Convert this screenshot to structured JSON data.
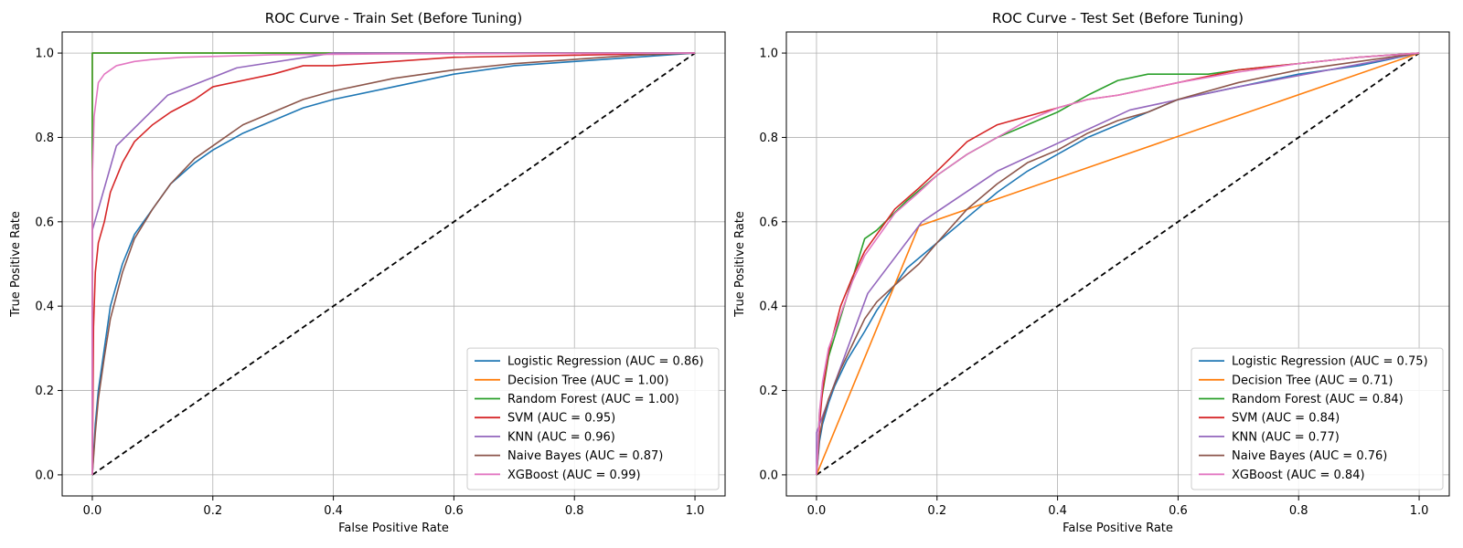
{
  "chart_data": [
    {
      "type": "line",
      "title": "ROC Curve - Train Set (Before Tuning)",
      "xlabel": "False Positive Rate",
      "ylabel": "True Positive Rate",
      "xlim": [
        -0.05,
        1.05
      ],
      "ylim": [
        -0.05,
        1.05
      ],
      "xticks": [
        0.0,
        0.2,
        0.4,
        0.6,
        0.8,
        1.0
      ],
      "yticks": [
        0.0,
        0.2,
        0.4,
        0.6,
        0.8,
        1.0
      ],
      "tick_labels": [
        "0.0",
        "0.2",
        "0.4",
        "0.6",
        "0.8",
        "1.0"
      ],
      "grid": true,
      "legend_position": "lower-right",
      "series": [
        {
          "name": "Logistic Regression (AUC = 0.86)",
          "color": "#1f77b4",
          "points": [
            [
              0,
              0
            ],
            [
              0.005,
              0.12
            ],
            [
              0.01,
              0.2
            ],
            [
              0.02,
              0.3
            ],
            [
              0.03,
              0.4
            ],
            [
              0.05,
              0.5
            ],
            [
              0.07,
              0.57
            ],
            [
              0.1,
              0.63
            ],
            [
              0.13,
              0.69
            ],
            [
              0.17,
              0.74
            ],
            [
              0.2,
              0.77
            ],
            [
              0.25,
              0.81
            ],
            [
              0.3,
              0.84
            ],
            [
              0.35,
              0.87
            ],
            [
              0.4,
              0.89
            ],
            [
              0.5,
              0.92
            ],
            [
              0.6,
              0.95
            ],
            [
              0.7,
              0.97
            ],
            [
              0.8,
              0.98
            ],
            [
              0.9,
              0.99
            ],
            [
              1.0,
              1.0
            ]
          ]
        },
        {
          "name": "Decision Tree (AUC = 1.00)",
          "color": "#ff7f0e",
          "points": [
            [
              0,
              0
            ],
            [
              0,
              1.0
            ],
            [
              1.0,
              1.0
            ]
          ]
        },
        {
          "name": "Random Forest (AUC = 1.00)",
          "color": "#2ca02c",
          "points": [
            [
              0,
              0
            ],
            [
              0,
              0.8
            ],
            [
              0,
              1.0
            ],
            [
              1.0,
              1.0
            ]
          ]
        },
        {
          "name": "SVM (AUC = 0.95)",
          "color": "#d62728",
          "points": [
            [
              0,
              0
            ],
            [
              0.002,
              0.35
            ],
            [
              0.005,
              0.48
            ],
            [
              0.01,
              0.55
            ],
            [
              0.02,
              0.6
            ],
            [
              0.03,
              0.67
            ],
            [
              0.05,
              0.74
            ],
            [
              0.07,
              0.79
            ],
            [
              0.1,
              0.83
            ],
            [
              0.13,
              0.86
            ],
            [
              0.17,
              0.89
            ],
            [
              0.2,
              0.92
            ],
            [
              0.3,
              0.95
            ],
            [
              0.35,
              0.97
            ],
            [
              0.4,
              0.97
            ],
            [
              0.5,
              0.98
            ],
            [
              0.6,
              0.99
            ],
            [
              0.8,
              0.995
            ],
            [
              1.0,
              1.0
            ]
          ]
        },
        {
          "name": "KNN (AUC = 0.96)",
          "color": "#9467bd",
          "points": [
            [
              0,
              0
            ],
            [
              0,
              0.58
            ],
            [
              0.04,
              0.78
            ],
            [
              0.125,
              0.9
            ],
            [
              0.24,
              0.965
            ],
            [
              0.4,
              1.0
            ],
            [
              1.0,
              1.0
            ]
          ]
        },
        {
          "name": "Naive Bayes (AUC = 0.87)",
          "color": "#8c564b",
          "points": [
            [
              0,
              0
            ],
            [
              0.005,
              0.1
            ],
            [
              0.01,
              0.18
            ],
            [
              0.02,
              0.28
            ],
            [
              0.03,
              0.37
            ],
            [
              0.05,
              0.48
            ],
            [
              0.07,
              0.56
            ],
            [
              0.1,
              0.63
            ],
            [
              0.13,
              0.69
            ],
            [
              0.17,
              0.75
            ],
            [
              0.2,
              0.78
            ],
            [
              0.25,
              0.83
            ],
            [
              0.3,
              0.86
            ],
            [
              0.35,
              0.89
            ],
            [
              0.4,
              0.91
            ],
            [
              0.5,
              0.94
            ],
            [
              0.6,
              0.96
            ],
            [
              0.7,
              0.975
            ],
            [
              0.8,
              0.985
            ],
            [
              0.9,
              0.995
            ],
            [
              1.0,
              1.0
            ]
          ]
        },
        {
          "name": "XGBoost (AUC = 0.99)",
          "color": "#e377c2",
          "points": [
            [
              0,
              0
            ],
            [
              0,
              0.7
            ],
            [
              0.003,
              0.85
            ],
            [
              0.01,
              0.93
            ],
            [
              0.02,
              0.95
            ],
            [
              0.04,
              0.97
            ],
            [
              0.07,
              0.98
            ],
            [
              0.1,
              0.985
            ],
            [
              0.15,
              0.99
            ],
            [
              0.3,
              0.996
            ],
            [
              0.5,
              0.998
            ],
            [
              1.0,
              1.0
            ]
          ]
        }
      ],
      "reference": {
        "points": [
          [
            0,
            0
          ],
          [
            1,
            1
          ]
        ],
        "color": "#000000",
        "dash": true
      }
    },
    {
      "type": "line",
      "title": "ROC Curve - Test Set (Before Tuning)",
      "xlabel": "False Positive Rate",
      "ylabel": "True Positive Rate",
      "xlim": [
        -0.05,
        1.05
      ],
      "ylim": [
        -0.05,
        1.05
      ],
      "xticks": [
        0.0,
        0.2,
        0.4,
        0.6,
        0.8,
        1.0
      ],
      "yticks": [
        0.0,
        0.2,
        0.4,
        0.6,
        0.8,
        1.0
      ],
      "tick_labels": [
        "0.0",
        "0.2",
        "0.4",
        "0.6",
        "0.8",
        "1.0"
      ],
      "grid": true,
      "legend_position": "lower-right",
      "series": [
        {
          "name": "Logistic Regression (AUC = 0.75)",
          "color": "#1f77b4",
          "points": [
            [
              0,
              0
            ],
            [
              0.005,
              0.08
            ],
            [
              0.01,
              0.12
            ],
            [
              0.02,
              0.17
            ],
            [
              0.03,
              0.21
            ],
            [
              0.05,
              0.27
            ],
            [
              0.08,
              0.34
            ],
            [
              0.1,
              0.39
            ],
            [
              0.12,
              0.43
            ],
            [
              0.15,
              0.49
            ],
            [
              0.2,
              0.55
            ],
            [
              0.25,
              0.61
            ],
            [
              0.3,
              0.67
            ],
            [
              0.35,
              0.72
            ],
            [
              0.4,
              0.76
            ],
            [
              0.45,
              0.8
            ],
            [
              0.5,
              0.83
            ],
            [
              0.55,
              0.86
            ],
            [
              0.6,
              0.89
            ],
            [
              0.7,
              0.92
            ],
            [
              0.8,
              0.95
            ],
            [
              0.9,
              0.97
            ],
            [
              1.0,
              1.0
            ]
          ]
        },
        {
          "name": "Decision Tree (AUC = 0.71)",
          "color": "#ff7f0e",
          "points": [
            [
              0,
              0
            ],
            [
              0.17,
              0.59
            ],
            [
              1.0,
              1.0
            ]
          ]
        },
        {
          "name": "Random Forest (AUC = 0.84)",
          "color": "#2ca02c",
          "points": [
            [
              0,
              0
            ],
            [
              0.005,
              0.15
            ],
            [
              0.02,
              0.28
            ],
            [
              0.05,
              0.42
            ],
            [
              0.08,
              0.56
            ],
            [
              0.1,
              0.58
            ],
            [
              0.15,
              0.65
            ],
            [
              0.2,
              0.71
            ],
            [
              0.25,
              0.76
            ],
            [
              0.3,
              0.8
            ],
            [
              0.35,
              0.83
            ],
            [
              0.4,
              0.86
            ],
            [
              0.45,
              0.9
            ],
            [
              0.5,
              0.935
            ],
            [
              0.55,
              0.95
            ],
            [
              0.6,
              0.95
            ],
            [
              0.65,
              0.95
            ],
            [
              0.7,
              0.96
            ],
            [
              0.8,
              0.975
            ],
            [
              0.9,
              0.99
            ],
            [
              1.0,
              1.0
            ]
          ]
        },
        {
          "name": "SVM (AUC = 0.84)",
          "color": "#d62728",
          "points": [
            [
              0,
              0
            ],
            [
              0.005,
              0.12
            ],
            [
              0.01,
              0.2
            ],
            [
              0.02,
              0.29
            ],
            [
              0.04,
              0.4
            ],
            [
              0.06,
              0.47
            ],
            [
              0.08,
              0.53
            ],
            [
              0.1,
              0.57
            ],
            [
              0.13,
              0.63
            ],
            [
              0.17,
              0.68
            ],
            [
              0.2,
              0.72
            ],
            [
              0.25,
              0.79
            ],
            [
              0.3,
              0.83
            ],
            [
              0.35,
              0.85
            ],
            [
              0.4,
              0.87
            ],
            [
              0.45,
              0.89
            ],
            [
              0.5,
              0.9
            ],
            [
              0.6,
              0.93
            ],
            [
              0.7,
              0.96
            ],
            [
              0.8,
              0.975
            ],
            [
              0.9,
              0.99
            ],
            [
              1.0,
              1.0
            ]
          ]
        },
        {
          "name": "KNN (AUC = 0.77)",
          "color": "#9467bd",
          "points": [
            [
              0,
              0
            ],
            [
              0,
              0.1
            ],
            [
              0.085,
              0.43
            ],
            [
              0.175,
              0.6
            ],
            [
              0.3,
              0.72
            ],
            [
              0.52,
              0.865
            ],
            [
              0.7,
              0.92
            ],
            [
              1.0,
              1.0
            ]
          ]
        },
        {
          "name": "Naive Bayes (AUC = 0.76)",
          "color": "#8c564b",
          "points": [
            [
              0,
              0
            ],
            [
              0.005,
              0.09
            ],
            [
              0.01,
              0.13
            ],
            [
              0.02,
              0.18
            ],
            [
              0.04,
              0.25
            ],
            [
              0.06,
              0.31
            ],
            [
              0.08,
              0.37
            ],
            [
              0.1,
              0.41
            ],
            [
              0.13,
              0.45
            ],
            [
              0.17,
              0.5
            ],
            [
              0.2,
              0.55
            ],
            [
              0.25,
              0.63
            ],
            [
              0.3,
              0.69
            ],
            [
              0.35,
              0.74
            ],
            [
              0.4,
              0.77
            ],
            [
              0.45,
              0.81
            ],
            [
              0.5,
              0.84
            ],
            [
              0.55,
              0.86
            ],
            [
              0.6,
              0.89
            ],
            [
              0.7,
              0.93
            ],
            [
              0.8,
              0.96
            ],
            [
              0.9,
              0.98
            ],
            [
              1.0,
              1.0
            ]
          ]
        },
        {
          "name": "XGBoost (AUC = 0.84)",
          "color": "#e377c2",
          "points": [
            [
              0,
              0
            ],
            [
              0.005,
              0.15
            ],
            [
              0.01,
              0.22
            ],
            [
              0.02,
              0.3
            ],
            [
              0.04,
              0.38
            ],
            [
              0.06,
              0.46
            ],
            [
              0.08,
              0.52
            ],
            [
              0.1,
              0.56
            ],
            [
              0.13,
              0.62
            ],
            [
              0.17,
              0.67
            ],
            [
              0.2,
              0.71
            ],
            [
              0.25,
              0.76
            ],
            [
              0.3,
              0.8
            ],
            [
              0.35,
              0.84
            ],
            [
              0.4,
              0.87
            ],
            [
              0.45,
              0.89
            ],
            [
              0.5,
              0.9
            ],
            [
              0.6,
              0.93
            ],
            [
              0.7,
              0.955
            ],
            [
              0.8,
              0.975
            ],
            [
              0.9,
              0.99
            ],
            [
              1.0,
              1.0
            ]
          ]
        }
      ],
      "reference": {
        "points": [
          [
            0,
            0
          ],
          [
            1,
            1
          ]
        ],
        "color": "#000000",
        "dash": true
      }
    }
  ]
}
